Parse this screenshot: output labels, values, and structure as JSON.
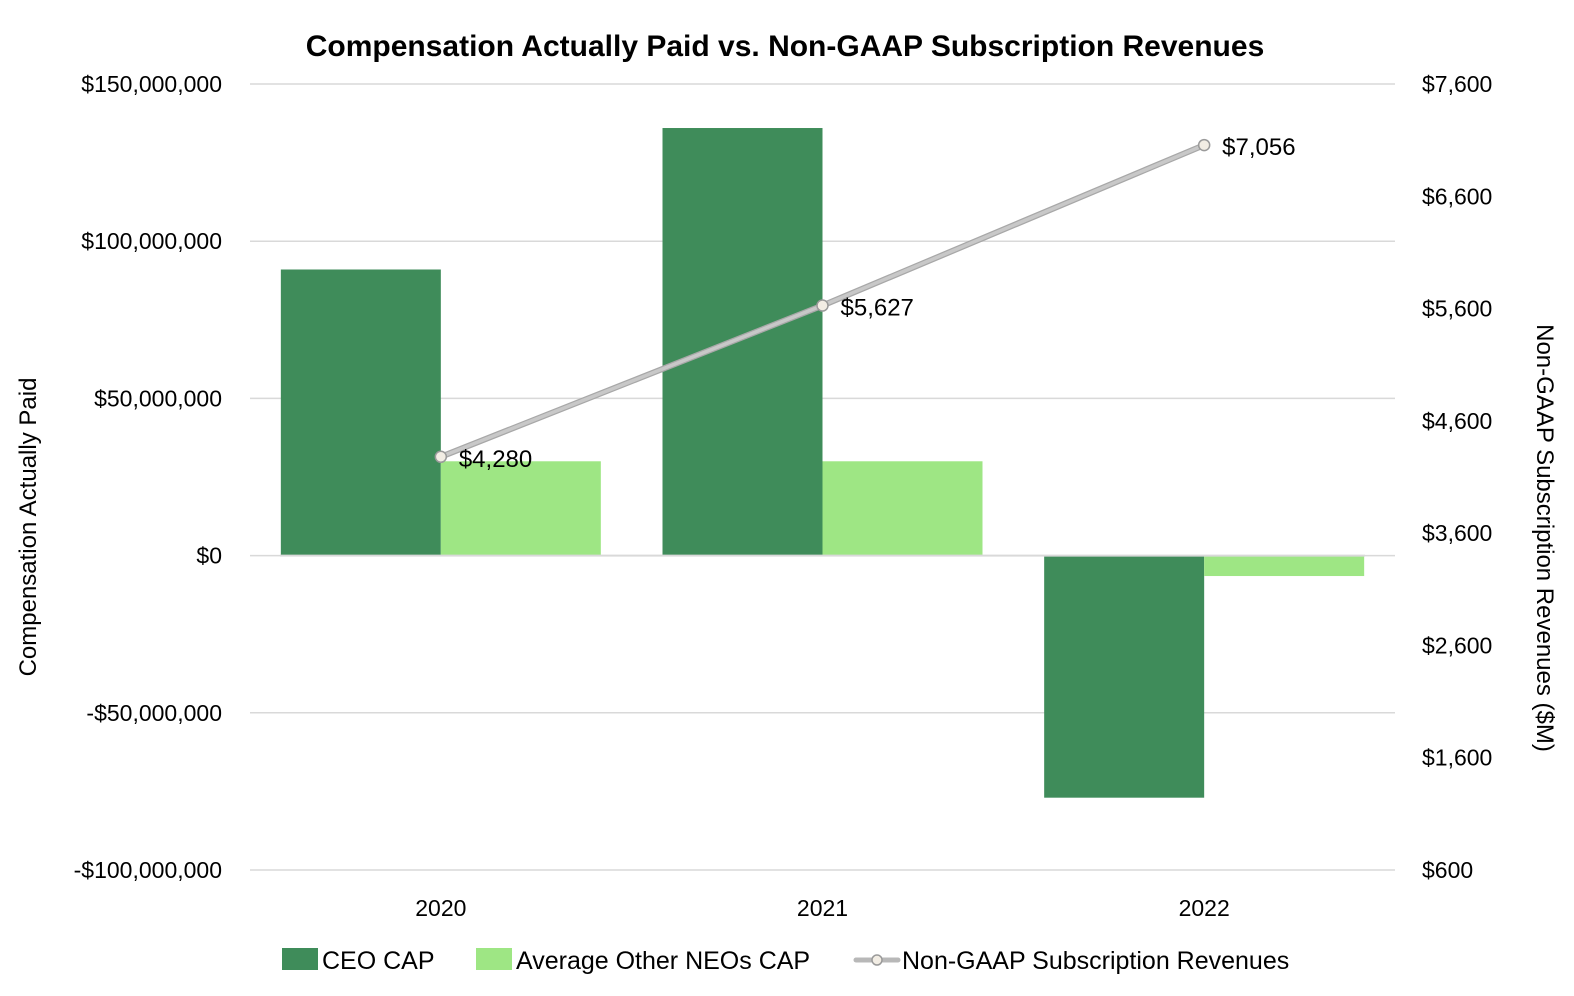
{
  "chart_data": {
    "type": "bar",
    "title": "Compensation Actually Paid vs. Non-GAAP Subscription Revenues",
    "categories": [
      "2020",
      "2021",
      "2022"
    ],
    "ylabel": "Compensation Actually Paid",
    "y2label": "Non-GAAP Subscription Revenues ($M)",
    "ylim": [
      -100000000,
      150000000
    ],
    "y2lim": [
      600,
      7600
    ],
    "yticks": [
      150000000,
      100000000,
      50000000,
      0,
      -50000000,
      -100000000
    ],
    "yticklabels": [
      "$150,000,000",
      "$100,000,000",
      "$50,000,000",
      "$0",
      "-$50,000,000",
      "-$100,000,000"
    ],
    "y2ticks": [
      7600,
      6600,
      5600,
      4600,
      3600,
      2600,
      1600,
      600
    ],
    "y2ticklabels": [
      "$7,600",
      "$6,600",
      "$5,600",
      "$4,600",
      "$3,600",
      "$2,600",
      "$1,600",
      "$600"
    ],
    "grid": true,
    "legend_position": "bottom",
    "series": [
      {
        "name": "CEO CAP",
        "type": "bar",
        "axis": "left",
        "color": "#3f8c5a",
        "values": [
          91000000,
          136000000,
          -77000000
        ]
      },
      {
        "name": "Average Other NEOs CAP",
        "type": "bar",
        "axis": "left",
        "color": "#9ee684",
        "values": [
          30000000,
          30000000,
          -6500000
        ]
      },
      {
        "name": "Non-GAAP Subscription Revenues",
        "type": "line",
        "axis": "right",
        "color": "#c8c8c8",
        "values": [
          4280,
          5627,
          7056
        ],
        "labels": [
          "$4,280",
          "$5,627",
          "$7,056"
        ]
      }
    ]
  }
}
